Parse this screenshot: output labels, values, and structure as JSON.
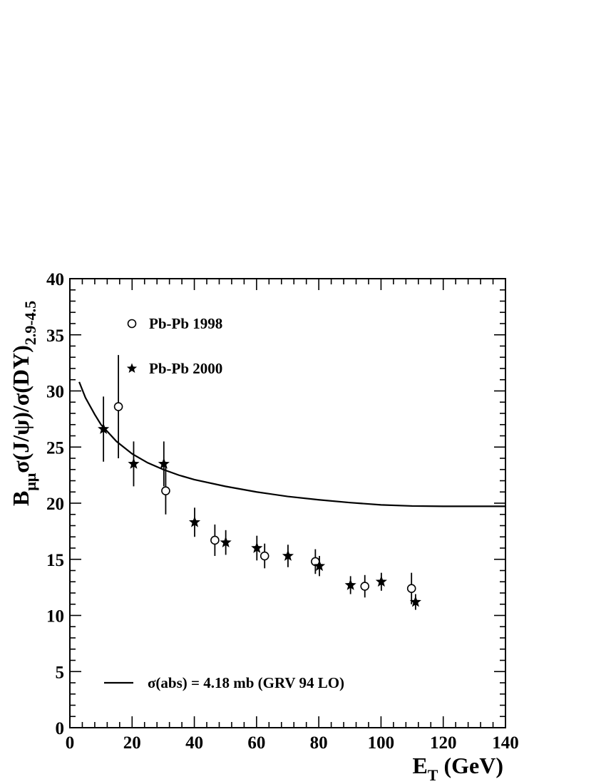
{
  "chart_data": {
    "type": "scatter",
    "xlabel": {
      "main": "E",
      "sub": "T",
      "rest": " (GeV)"
    },
    "ylabel": {
      "p1": "B",
      "sub1": "μμ",
      "p2": "σ(J/ψ)/σ(DY)",
      "sub2": "2.9-4.5"
    },
    "xlim": [
      0,
      140
    ],
    "ylim": [
      0,
      40
    ],
    "x_ticks": [
      0,
      20,
      40,
      60,
      80,
      100,
      120,
      140
    ],
    "y_ticks": [
      0,
      5,
      10,
      15,
      20,
      25,
      30,
      35,
      40
    ],
    "x_tick_labels": [
      "0",
      "20",
      "40",
      "60",
      "80",
      "100",
      "120",
      "140"
    ],
    "y_tick_labels": [
      "0",
      "5",
      "10",
      "15",
      "20",
      "25",
      "30",
      "35",
      "40"
    ],
    "grid": false,
    "series": [
      {
        "name": "Pb-Pb 1998",
        "marker": "open-circle",
        "points": [
          {
            "x": 15.6,
            "y": 28.6,
            "err": 4.6
          },
          {
            "x": 30.8,
            "y": 21.1,
            "err": 2.1
          },
          {
            "x": 46.6,
            "y": 16.7,
            "err": 1.4
          },
          {
            "x": 62.6,
            "y": 15.3,
            "err": 1.1
          },
          {
            "x": 78.9,
            "y": 14.8,
            "err": 1.1
          },
          {
            "x": 94.8,
            "y": 12.6,
            "err": 1.0
          },
          {
            "x": 109.8,
            "y": 12.4,
            "err": 1.4
          }
        ]
      },
      {
        "name": "Pb-Pb 2000",
        "marker": "star",
        "points": [
          {
            "x": 10.8,
            "y": 26.6,
            "err": 2.9
          },
          {
            "x": 20.5,
            "y": 23.5,
            "err": 2.0
          },
          {
            "x": 30.2,
            "y": 23.5,
            "err": 2.0
          },
          {
            "x": 40.1,
            "y": 18.3,
            "err": 1.3
          },
          {
            "x": 50.1,
            "y": 16.5,
            "err": 1.1
          },
          {
            "x": 60.1,
            "y": 16.0,
            "err": 1.1
          },
          {
            "x": 70.1,
            "y": 15.3,
            "err": 1.0
          },
          {
            "x": 80.2,
            "y": 14.4,
            "err": 0.9
          },
          {
            "x": 90.2,
            "y": 12.7,
            "err": 0.8
          },
          {
            "x": 100.1,
            "y": 13.0,
            "err": 0.8
          },
          {
            "x": 111.1,
            "y": 11.2,
            "err": 0.7
          }
        ]
      },
      {
        "name": "σ(abs) = 4.18 mb (GRV 94 LO)",
        "marker": "line",
        "x": [
          3,
          5,
          8,
          10,
          15,
          20,
          25,
          30,
          35,
          40,
          50,
          60,
          70,
          80,
          90,
          100,
          110,
          120,
          130,
          140
        ],
        "y": [
          30.8,
          29.4,
          27.9,
          27.0,
          25.5,
          24.4,
          23.6,
          23.0,
          22.5,
          22.1,
          21.5,
          21.0,
          20.6,
          20.3,
          20.05,
          19.85,
          19.75,
          19.72,
          19.72,
          19.72
        ]
      }
    ],
    "legend": [
      {
        "label": "Pb-Pb 1998",
        "marker": "open-circle"
      },
      {
        "label": "Pb-Pb 2000",
        "marker": "star"
      },
      {
        "label": "σ(abs) = 4.18 mb (GRV 94 LO)",
        "marker": "line"
      }
    ],
    "legend_placement": "top-left and bottom-left inside plot"
  }
}
